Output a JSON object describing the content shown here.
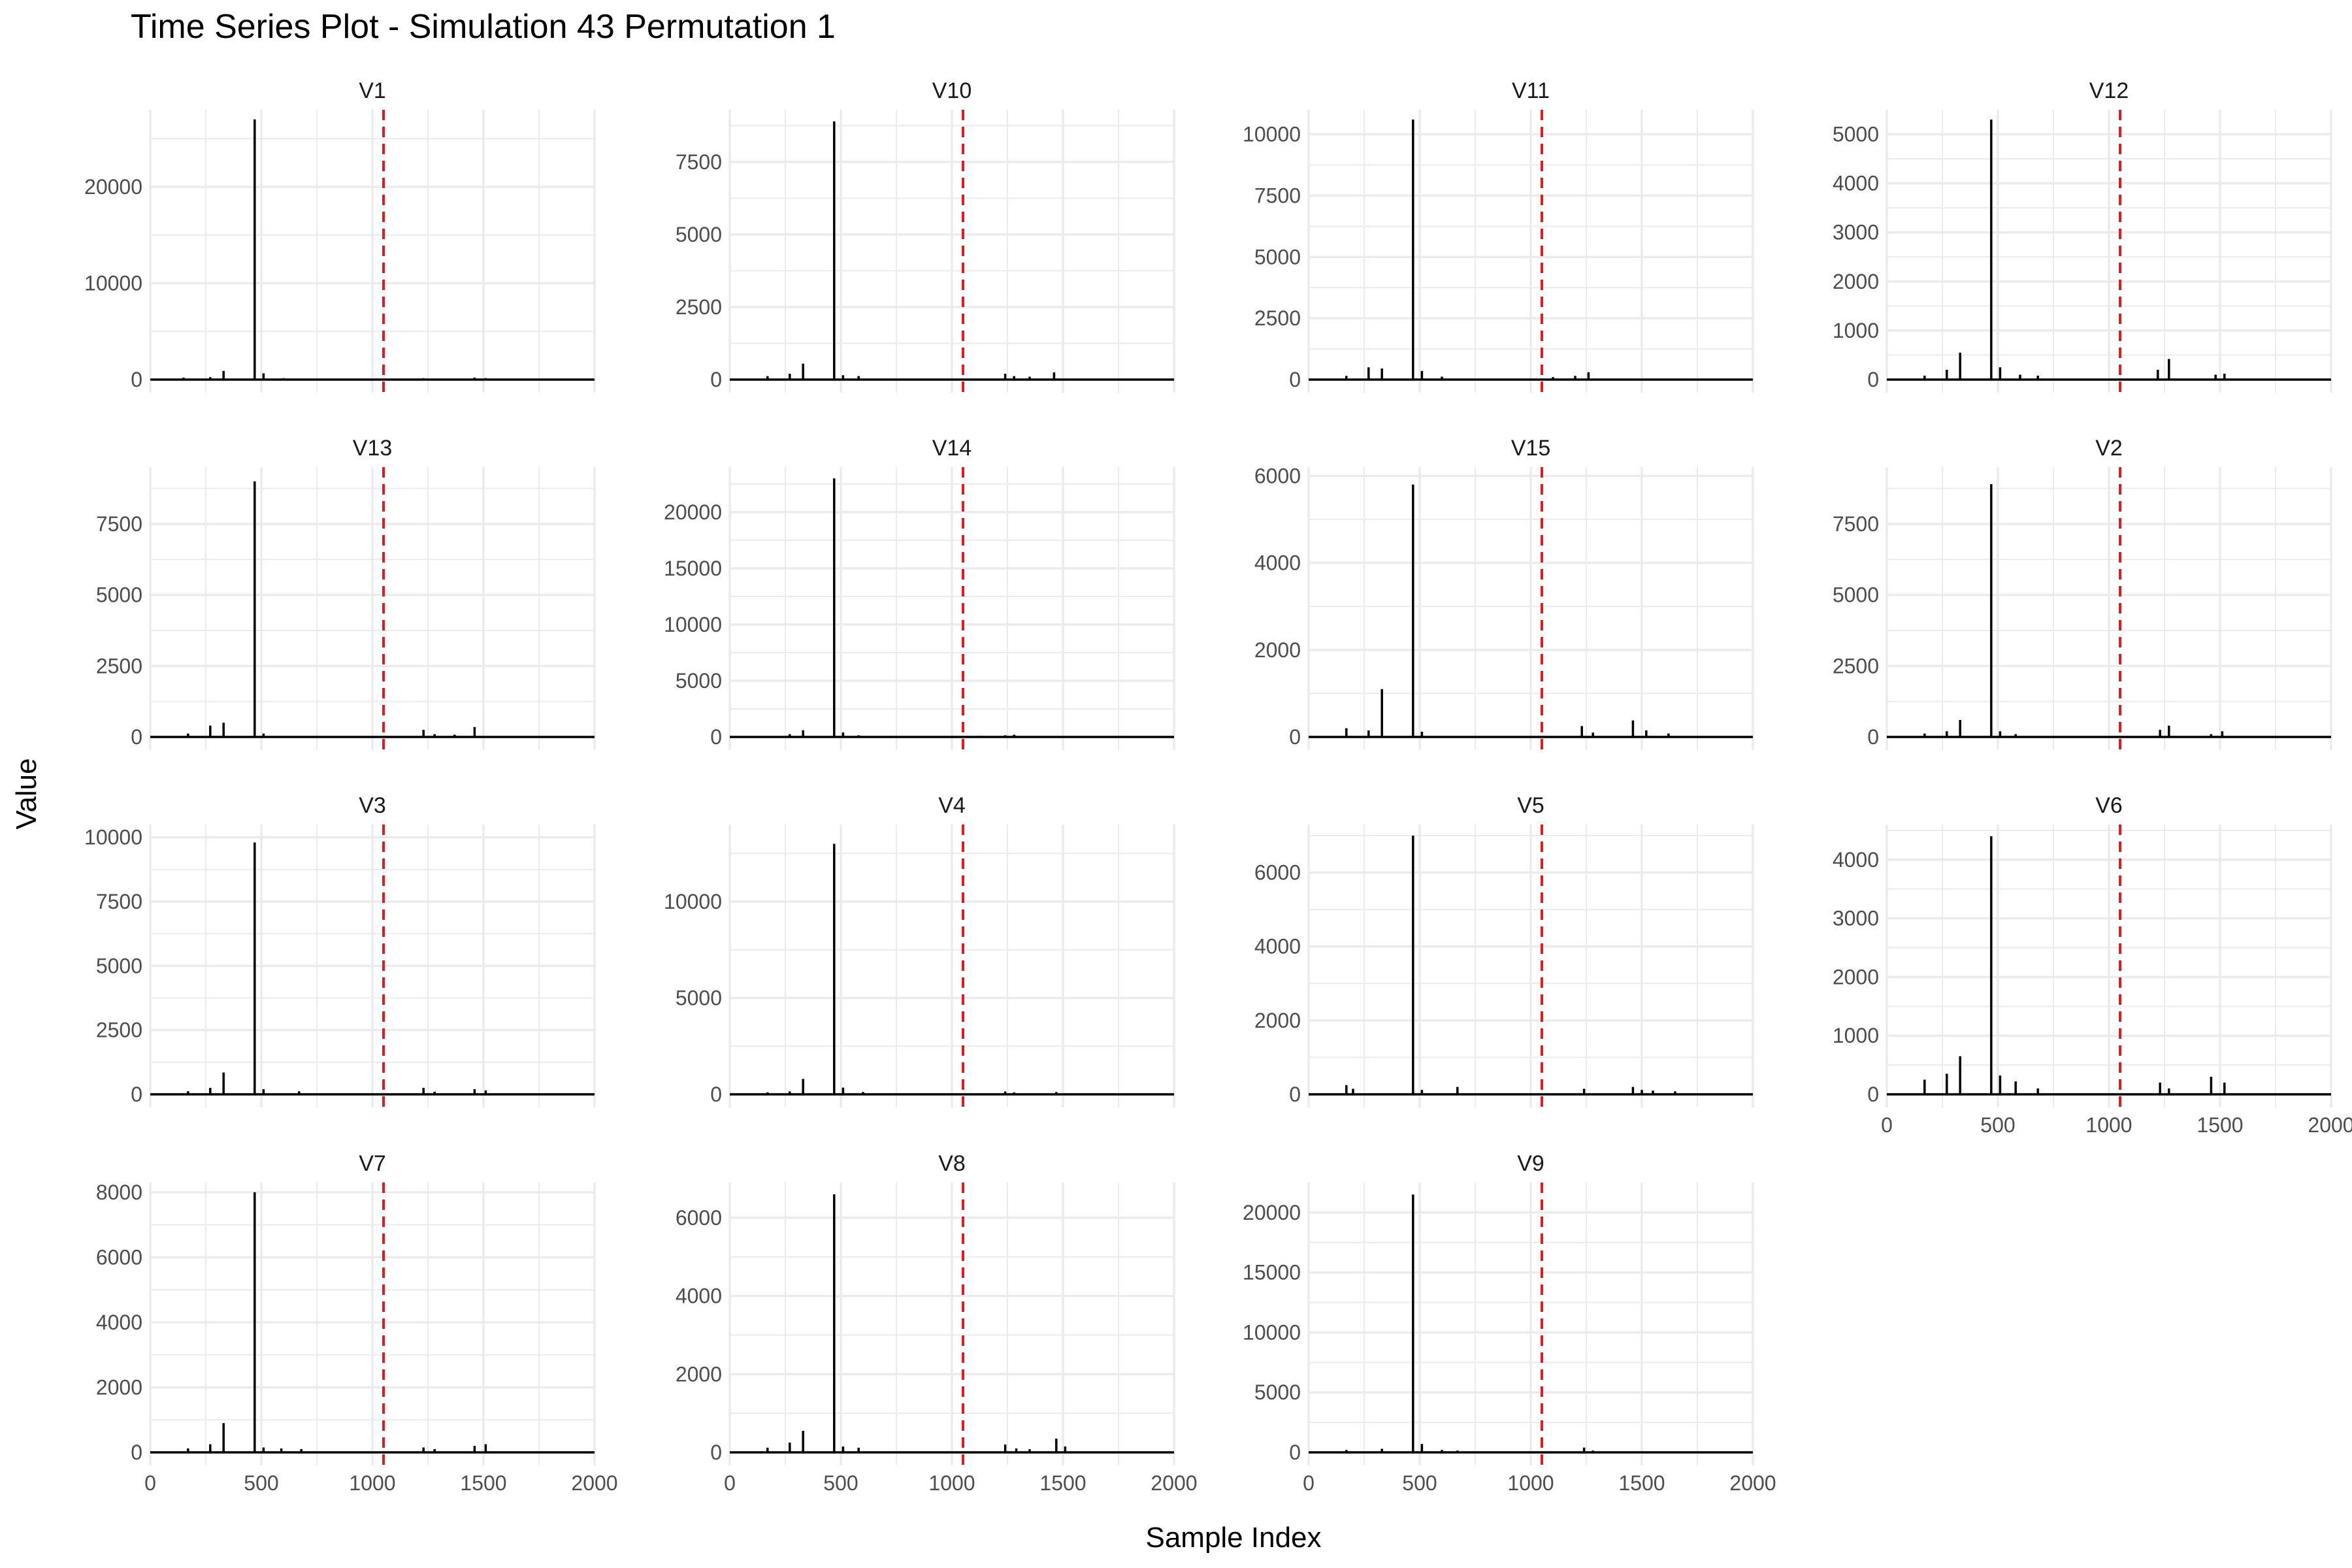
{
  "chart_data": {
    "type": "line",
    "title": "Time Series Plot - Simulation 43 Permutation 1",
    "xlabel": "Sample Index",
    "ylabel": "Value",
    "xlim": [
      0,
      2000
    ],
    "xticks": [
      0,
      500,
      1000,
      1500,
      2000
    ],
    "vline_x": 1050,
    "colors": {
      "series": "#000000",
      "vline": "#e41a1c",
      "grid": "#ebebeb",
      "text": "#4d4d4d"
    },
    "grid": true,
    "panels": [
      {
        "name": "V1",
        "ylim": [
          0,
          28000
        ],
        "yticks": [
          0,
          10000,
          20000
        ],
        "spikes": [
          [
            470,
            27000
          ],
          [
            330,
            900
          ],
          [
            510,
            650
          ],
          [
            150,
            200
          ],
          [
            270,
            250
          ],
          [
            600,
            150
          ],
          [
            1230,
            150
          ],
          [
            1460,
            200
          ],
          [
            1510,
            150
          ]
        ]
      },
      {
        "name": "V10",
        "ylim": [
          0,
          9300
        ],
        "yticks": [
          0,
          2500,
          5000,
          7500
        ],
        "spikes": [
          [
            470,
            8900
          ],
          [
            330,
            550
          ],
          [
            270,
            200
          ],
          [
            170,
            120
          ],
          [
            510,
            150
          ],
          [
            580,
            120
          ],
          [
            1240,
            200
          ],
          [
            1280,
            120
          ],
          [
            1460,
            250
          ],
          [
            1350,
            100
          ]
        ]
      },
      {
        "name": "V11",
        "ylim": [
          0,
          11000
        ],
        "yticks": [
          0,
          2500,
          5000,
          7500,
          10000
        ],
        "spikes": [
          [
            470,
            10600
          ],
          [
            270,
            500
          ],
          [
            330,
            450
          ],
          [
            510,
            350
          ],
          [
            170,
            150
          ],
          [
            600,
            120
          ],
          [
            1260,
            300
          ],
          [
            1200,
            150
          ],
          [
            1100,
            100
          ]
        ]
      },
      {
        "name": "V12",
        "ylim": [
          0,
          5500
        ],
        "yticks": [
          0,
          1000,
          2000,
          3000,
          4000,
          5000
        ],
        "spikes": [
          [
            470,
            5300
          ],
          [
            330,
            550
          ],
          [
            270,
            200
          ],
          [
            510,
            250
          ],
          [
            170,
            80
          ],
          [
            600,
            100
          ],
          [
            680,
            80
          ],
          [
            1270,
            420
          ],
          [
            1220,
            200
          ],
          [
            1480,
            100
          ],
          [
            1520,
            120
          ]
        ]
      },
      {
        "name": "V13",
        "ylim": [
          0,
          9500
        ],
        "yticks": [
          0,
          2500,
          5000,
          7500
        ],
        "spikes": [
          [
            470,
            9000
          ],
          [
            330,
            500
          ],
          [
            270,
            400
          ],
          [
            510,
            120
          ],
          [
            170,
            120
          ],
          [
            1230,
            250
          ],
          [
            1460,
            350
          ],
          [
            1280,
            100
          ],
          [
            1370,
            80
          ]
        ]
      },
      {
        "name": "V14",
        "ylim": [
          0,
          24000
        ],
        "yticks": [
          0,
          5000,
          10000,
          15000,
          20000
        ],
        "spikes": [
          [
            470,
            23000
          ],
          [
            330,
            600
          ],
          [
            510,
            400
          ],
          [
            270,
            250
          ],
          [
            580,
            150
          ],
          [
            1240,
            150
          ],
          [
            1280,
            200
          ],
          [
            1130,
            100
          ]
        ]
      },
      {
        "name": "V15",
        "ylim": [
          0,
          6200
        ],
        "yticks": [
          0,
          2000,
          4000,
          6000
        ],
        "spikes": [
          [
            470,
            5800
          ],
          [
            330,
            1100
          ],
          [
            170,
            200
          ],
          [
            270,
            150
          ],
          [
            510,
            120
          ],
          [
            1230,
            250
          ],
          [
            1460,
            380
          ],
          [
            1520,
            150
          ],
          [
            1280,
            100
          ],
          [
            1620,
            80
          ]
        ]
      },
      {
        "name": "V2",
        "ylim": [
          0,
          9500
        ],
        "yticks": [
          0,
          2500,
          5000,
          7500
        ],
        "spikes": [
          [
            470,
            8900
          ],
          [
            330,
            600
          ],
          [
            270,
            200
          ],
          [
            510,
            200
          ],
          [
            170,
            120
          ],
          [
            580,
            100
          ],
          [
            1270,
            400
          ],
          [
            1230,
            250
          ],
          [
            1510,
            200
          ],
          [
            1460,
            100
          ]
        ]
      },
      {
        "name": "V3",
        "ylim": [
          0,
          10500
        ],
        "yticks": [
          0,
          2500,
          5000,
          7500,
          10000
        ],
        "spikes": [
          [
            470,
            9800
          ],
          [
            330,
            850
          ],
          [
            270,
            250
          ],
          [
            510,
            200
          ],
          [
            170,
            120
          ],
          [
            670,
            120
          ],
          [
            1230,
            250
          ],
          [
            1460,
            200
          ],
          [
            1510,
            150
          ],
          [
            1280,
            100
          ]
        ]
      },
      {
        "name": "V4",
        "ylim": [
          0,
          14000
        ],
        "yticks": [
          0,
          5000,
          10000
        ],
        "spikes": [
          [
            470,
            13000
          ],
          [
            330,
            800
          ],
          [
            510,
            350
          ],
          [
            270,
            150
          ],
          [
            170,
            100
          ],
          [
            600,
            120
          ],
          [
            1240,
            150
          ],
          [
            1280,
            100
          ],
          [
            1470,
            120
          ]
        ]
      },
      {
        "name": "V5",
        "ylim": [
          0,
          7300
        ],
        "yticks": [
          0,
          2000,
          4000,
          6000
        ],
        "spikes": [
          [
            470,
            7000
          ],
          [
            170,
            250
          ],
          [
            200,
            150
          ],
          [
            510,
            120
          ],
          [
            670,
            200
          ],
          [
            1240,
            150
          ],
          [
            1460,
            200
          ],
          [
            1500,
            120
          ],
          [
            1550,
            100
          ],
          [
            1650,
            80
          ]
        ]
      },
      {
        "name": "V6",
        "ylim": [
          0,
          4600
        ],
        "yticks": [
          0,
          1000,
          2000,
          3000,
          4000
        ],
        "spikes": [
          [
            470,
            4400
          ],
          [
            330,
            650
          ],
          [
            270,
            350
          ],
          [
            170,
            250
          ],
          [
            510,
            320
          ],
          [
            580,
            220
          ],
          [
            680,
            100
          ],
          [
            1230,
            200
          ],
          [
            1460,
            300
          ],
          [
            1520,
            200
          ],
          [
            1270,
            100
          ]
        ]
      },
      {
        "name": "V7",
        "ylim": [
          0,
          8300
        ],
        "yticks": [
          0,
          2000,
          4000,
          6000,
          8000
        ],
        "spikes": [
          [
            470,
            8000
          ],
          [
            330,
            900
          ],
          [
            270,
            250
          ],
          [
            170,
            120
          ],
          [
            510,
            150
          ],
          [
            590,
            120
          ],
          [
            680,
            100
          ],
          [
            1230,
            150
          ],
          [
            1460,
            200
          ],
          [
            1510,
            250
          ],
          [
            1280,
            100
          ]
        ]
      },
      {
        "name": "V8",
        "ylim": [
          0,
          6900
        ],
        "yticks": [
          0,
          2000,
          4000,
          6000
        ],
        "spikes": [
          [
            470,
            6600
          ],
          [
            330,
            550
          ],
          [
            270,
            250
          ],
          [
            170,
            120
          ],
          [
            510,
            150
          ],
          [
            580,
            120
          ],
          [
            1240,
            200
          ],
          [
            1290,
            100
          ],
          [
            1470,
            350
          ],
          [
            1510,
            150
          ],
          [
            1350,
            80
          ]
        ]
      },
      {
        "name": "V9",
        "ylim": [
          0,
          22500
        ],
        "yticks": [
          0,
          5000,
          10000,
          15000,
          20000
        ],
        "spikes": [
          [
            470,
            21500
          ],
          [
            510,
            700
          ],
          [
            330,
            300
          ],
          [
            170,
            200
          ],
          [
            600,
            200
          ],
          [
            670,
            150
          ],
          [
            1240,
            400
          ],
          [
            1280,
            150
          ]
        ]
      }
    ]
  }
}
